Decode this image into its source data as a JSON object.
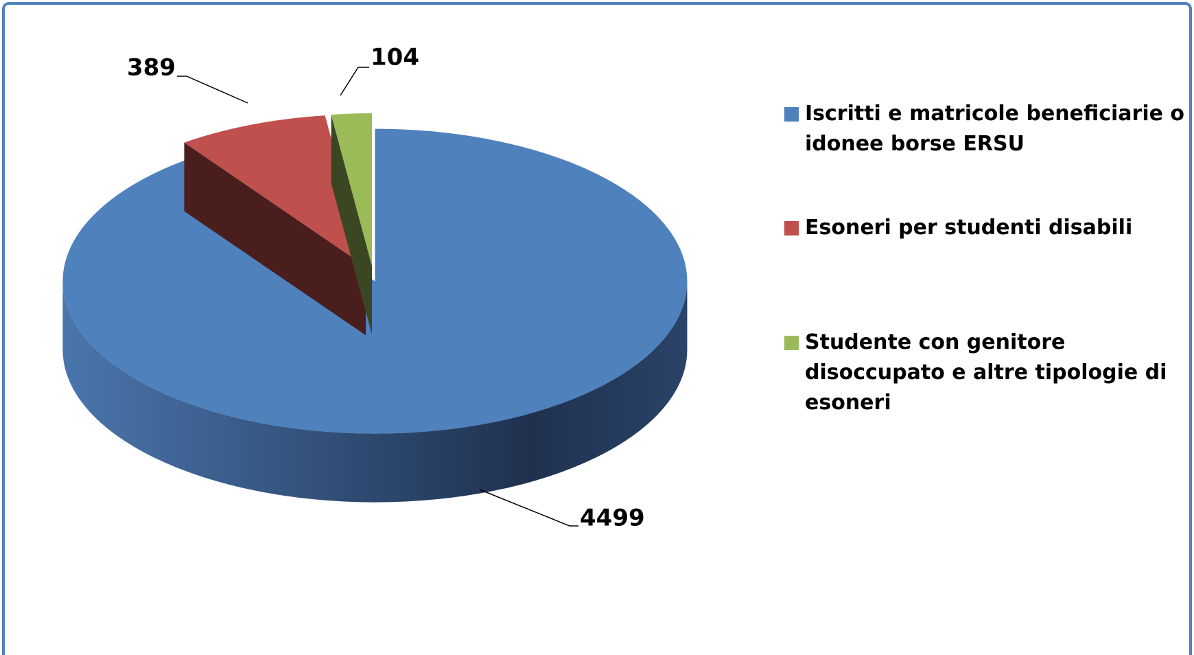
{
  "chart_data": {
    "type": "pie",
    "categories": [
      "Iscritti e matricole beneficiarie o idonee borse ERSU",
      "Esoneri per studenti disabili",
      "Studente con genitore disoccupato e altre tipologie di esoneri"
    ],
    "values": [
      4499,
      389,
      104
    ],
    "colors": [
      "#4f81bd",
      "#c0504d",
      "#9bbb59"
    ],
    "legend": "right"
  }
}
